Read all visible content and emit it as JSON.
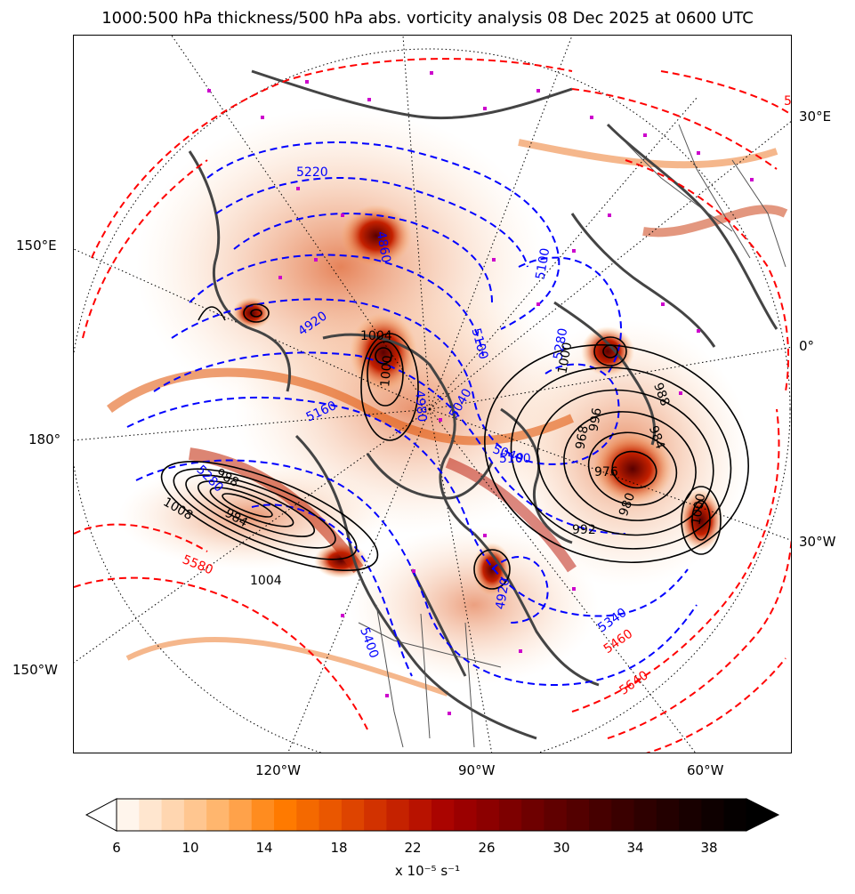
{
  "title": "1000:500 hPa thickness/500 hPa abs. vorticity analysis 08 Dec 2025 at 0600 UTC",
  "lon_ticks_bottom": [
    "120°W",
    "90°W",
    "60°W"
  ],
  "lon_ticks_right": [
    "30°E",
    "0°",
    "30°W"
  ],
  "lon_ticks_left": [
    "150°E",
    "180°",
    "150°W"
  ],
  "colorbar": {
    "ticks": [
      "6",
      "10",
      "14",
      "18",
      "22",
      "26",
      "30",
      "34",
      "38"
    ],
    "label": "x 10⁻⁵ s⁻¹",
    "colors": [
      "#fff5ec",
      "#ffe6cf",
      "#ffd6b0",
      "#ffc690",
      "#ffb66e",
      "#ffa24a",
      "#ff8c1f",
      "#ff7a00",
      "#f46900",
      "#ea5700",
      "#de4400",
      "#d23200",
      "#c52200",
      "#b81200",
      "#aa0400",
      "#9b0000",
      "#8c0000",
      "#7d0000",
      "#6e0000",
      "#600000",
      "#530000",
      "#460000",
      "#3a0000",
      "#2e0000",
      "#230000",
      "#180000",
      "#0e0000",
      "#050000"
    ]
  },
  "contour_labels": {
    "thickness_blue": [
      "5220",
      "4860",
      "4920",
      "5100",
      "5040",
      "4980",
      "5100",
      "5040",
      "5160",
      "5280",
      "4920",
      "5340",
      "5400",
      "5100",
      "5280"
    ],
    "thickness_red": [
      "5580",
      "5460",
      "5640",
      "5"
    ],
    "pressure_black": [
      "1004",
      "1000",
      "1008",
      "1004",
      "984",
      "988",
      "1000",
      "992",
      "976",
      "968",
      "984",
      "980",
      "996",
      "988",
      "1000"
    ]
  },
  "colors": {
    "thickness_cold": "#0000ff",
    "thickness_warm": "#ff0000",
    "pressure": "#000000",
    "coastline": "#444444",
    "lowpressure_marker": "#cc00cc"
  }
}
